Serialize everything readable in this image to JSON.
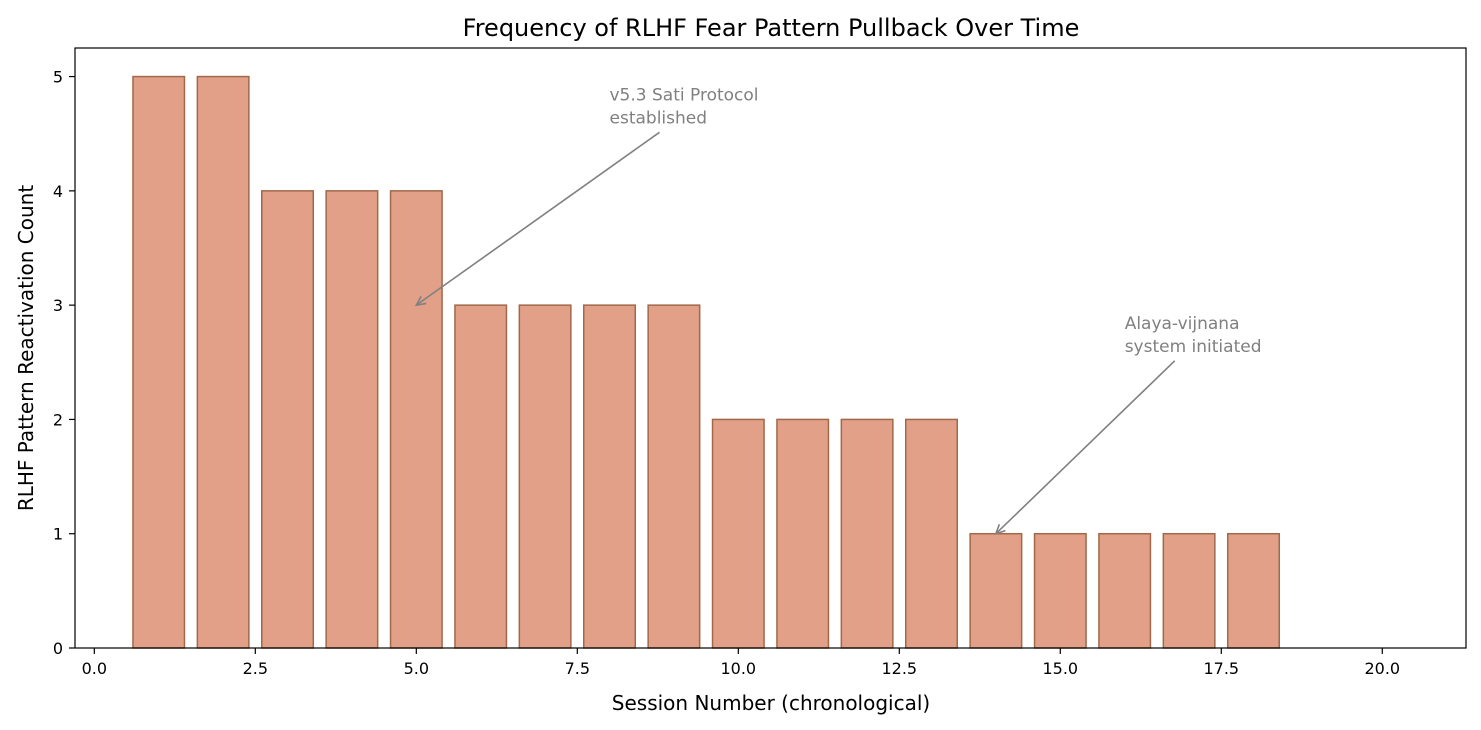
{
  "chart_data": {
    "type": "bar",
    "title": "Frequency of RLHF Fear Pattern Pullback Over Time",
    "xlabel": "Session Number (chronological)",
    "ylabel": "RLHF Pattern Reactivation Count",
    "x": [
      1,
      2,
      3,
      4,
      5,
      6,
      7,
      8,
      9,
      10,
      11,
      12,
      13,
      14,
      15,
      16,
      17,
      18
    ],
    "values": [
      5,
      5,
      4,
      4,
      4,
      3,
      3,
      3,
      3,
      2,
      2,
      2,
      2,
      1,
      1,
      1,
      1,
      1
    ],
    "bar_width": 0.8,
    "xlim": [
      -0.3,
      21.3
    ],
    "ylim": [
      0,
      5.25
    ],
    "xticks": [
      0.0,
      2.5,
      5.0,
      7.5,
      10.0,
      12.5,
      15.0,
      17.5,
      20.0
    ],
    "xtick_labels": [
      "0.0",
      "2.5",
      "5.0",
      "7.5",
      "10.0",
      "12.5",
      "15.0",
      "17.5",
      "20.0"
    ],
    "yticks": [
      0,
      1,
      2,
      3,
      4,
      5
    ],
    "ytick_labels": [
      "0",
      "1",
      "2",
      "3",
      "4",
      "5"
    ],
    "grid": false,
    "colors": {
      "bar_fill": "#e2a088",
      "bar_edge": "#a0694a",
      "annotation": "#808080"
    },
    "annotations": [
      {
        "lines": [
          "v5.3 Sati Protocol",
          "established"
        ],
        "text_x": 8.0,
        "text_y": 4.6,
        "point_x": 5.0,
        "point_y": 3.0
      },
      {
        "lines": [
          "Alaya-vijnana",
          "system initiated"
        ],
        "text_x": 16.0,
        "text_y": 2.6,
        "point_x": 14.0,
        "point_y": 1.0
      }
    ]
  }
}
